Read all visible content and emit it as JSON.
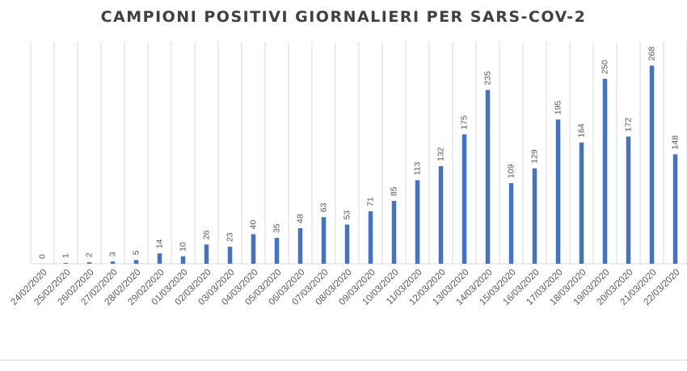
{
  "chart_data": {
    "type": "bar",
    "title": "CAMPIONI POSITIVI GIORNALIERI PER SARS-COV-2",
    "xlabel": "",
    "ylabel": "",
    "ylim": [
      0,
      300
    ],
    "grid": "vertical",
    "bar_color": "#4472c4",
    "categories": [
      "24/02/2020",
      "25/02/2020",
      "26/02/2020",
      "27/02/2020",
      "28/02/2020",
      "29/02/2020",
      "01/03/2020",
      "02/03/2020",
      "03/03/2020",
      "04/03/2020",
      "05/03/2020",
      "06/03/2020",
      "07/03/2020",
      "08/03/2020",
      "09/03/2020",
      "10/03/2020",
      "11/03/2020",
      "12/03/2020",
      "13/03/2020",
      "14/03/2020",
      "15/03/2020",
      "16/03/2020",
      "17/03/2020",
      "18/03/2020",
      "19/03/2020",
      "20/03/2020",
      "21/03/2020",
      "22/03/2020"
    ],
    "values": [
      0,
      1,
      2,
      3,
      5,
      14,
      10,
      26,
      23,
      40,
      35,
      48,
      63,
      53,
      71,
      85,
      113,
      132,
      175,
      235,
      109,
      129,
      195,
      164,
      250,
      172,
      268,
      148
    ]
  }
}
